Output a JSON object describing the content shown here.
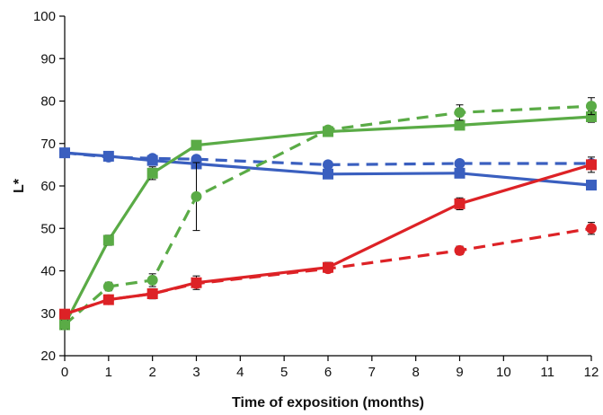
{
  "chart_data": {
    "type": "line",
    "title": "",
    "xlabel": "Time of exposition (months)",
    "ylabel": "L*",
    "xlim": [
      0,
      12
    ],
    "ylim": [
      20,
      100
    ],
    "xticks": [
      0,
      1,
      2,
      3,
      4,
      5,
      6,
      7,
      8,
      9,
      10,
      11,
      12
    ],
    "yticks": [
      20,
      30,
      40,
      50,
      60,
      70,
      80,
      90,
      100
    ],
    "grid": false,
    "legend": "none",
    "series": [
      {
        "color": "#3a5fbf",
        "dash": "solid",
        "marker": "square",
        "x": [
          0,
          1,
          2,
          3,
          6,
          9,
          12
        ],
        "y": [
          67.8,
          67.0,
          66.0,
          65.2,
          62.8,
          63.0,
          60.2
        ],
        "err": [
          0.8,
          0.8,
          0.8,
          0.8,
          0.8,
          0.8,
          0.8
        ]
      },
      {
        "color": "#3a5fbf",
        "dash": "dashed",
        "marker": "circle",
        "x": [
          0,
          1,
          2,
          3,
          6,
          9,
          12
        ],
        "y": [
          67.8,
          66.8,
          66.5,
          66.3,
          65.0,
          65.3,
          65.3
        ],
        "err": [
          0.8,
          0.8,
          0.8,
          0.8,
          0.8,
          0.8,
          0.8
        ]
      },
      {
        "color": "#5aab46",
        "dash": "solid",
        "marker": "square",
        "x": [
          0,
          1,
          2,
          3,
          6,
          9,
          12
        ],
        "y": [
          27.3,
          47.2,
          63.0,
          69.6,
          72.8,
          74.3,
          76.3
        ],
        "err": [
          1.0,
          1.2,
          1.5,
          0.8,
          0.8,
          1.0,
          1.3
        ]
      },
      {
        "color": "#5aab46",
        "dash": "dashed",
        "marker": "circle",
        "x": [
          0,
          1,
          2,
          3,
          6,
          9,
          12
        ],
        "y": [
          27.3,
          36.3,
          37.8,
          57.5,
          73.2,
          77.3,
          78.8
        ],
        "err": [
          1.0,
          1.0,
          1.5,
          8.0,
          0.8,
          1.8,
          2.0
        ]
      },
      {
        "color": "#dd2226",
        "dash": "solid",
        "marker": "square",
        "x": [
          0,
          1,
          2,
          3,
          6,
          9,
          12
        ],
        "y": [
          29.8,
          33.2,
          34.6,
          37.2,
          40.8,
          55.8,
          65.0
        ],
        "err": [
          0.8,
          1.0,
          1.2,
          1.6,
          1.2,
          1.4,
          1.8
        ]
      },
      {
        "color": "#dd2226",
        "dash": "dashed",
        "marker": "circle",
        "x": [
          0,
          1,
          2,
          3,
          6,
          9,
          12
        ],
        "y": [
          29.8,
          33.2,
          34.6,
          37.0,
          40.5,
          44.8,
          50.0
        ],
        "err": [
          0.8,
          0.8,
          0.8,
          0.8,
          0.8,
          1.0,
          1.4
        ]
      }
    ]
  }
}
